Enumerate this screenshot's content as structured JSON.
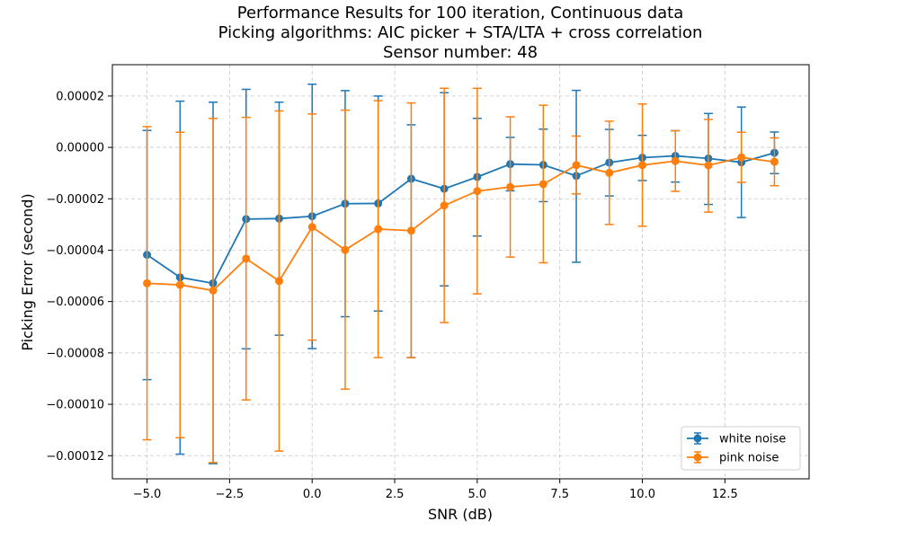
{
  "chart_data": {
    "type": "line",
    "title_lines": [
      "Performance Results for 100 iteration, Continuous data",
      "Picking algorithms: AIC picker + STA/LTA + cross correlation",
      "Sensor number: 48"
    ],
    "xlabel": "SNR (dB)",
    "ylabel": "Picking Error (second)",
    "xlim": [
      -6.05,
      15.05
    ],
    "ylim": [
      -0.000129,
      3.22e-05
    ],
    "xticks": [
      -5.0,
      -2.5,
      0.0,
      2.5,
      5.0,
      7.5,
      10.0,
      12.5
    ],
    "xtick_labels": [
      "−5.0",
      "−2.5",
      "0.0",
      "2.5",
      "5.0",
      "7.5",
      "10.0",
      "12.5"
    ],
    "yticks": [
      2e-05,
      0,
      -2e-05,
      -4e-05,
      -6e-05,
      -8e-05,
      -0.0001,
      -0.00012
    ],
    "ytick_labels": [
      "0.00002",
      "0.00000",
      "−0.00002",
      "−0.00004",
      "−0.00006",
      "−0.00008",
      "−0.00010",
      "−0.00012"
    ],
    "grid": true,
    "legend_position": "bottom-right",
    "x": [
      -5,
      -4,
      -3,
      -2,
      -1,
      0,
      1,
      2,
      3,
      4,
      5,
      6,
      7,
      8,
      9,
      10,
      11,
      12,
      13,
      14
    ],
    "series": [
      {
        "name": "white noise",
        "color": "#1f77b4",
        "values": [
          -4.18e-05,
          -5.06e-05,
          -5.29e-05,
          -2.79e-05,
          -2.77e-05,
          -2.68e-05,
          -2.19e-05,
          -2.18e-05,
          -1.22e-05,
          -1.61e-05,
          -1.15e-05,
          -6.5e-06,
          -6.8e-06,
          -1.11e-05,
          -5.9e-06,
          -4e-06,
          -3.3e-06,
          -4.3e-06,
          -5.8e-06,
          -2.1e-06
        ],
        "err_upper": [
          6.6e-06,
          1.8e-05,
          1.76e-05,
          2.26e-05,
          1.76e-05,
          2.46e-05,
          2.21e-05,
          2e-05,
          8.8e-06,
          2.13e-05,
          1.13e-05,
          3.9e-06,
          7.1e-06,
          2.22e-05,
          7e-06,
          4.7e-06,
          6.5e-06,
          1.32e-05,
          1.57e-05,
          6e-06
        ],
        "err_lower": [
          -9.04e-05,
          -0.0001194,
          -0.0001231,
          -7.84e-05,
          -7.31e-05,
          -7.83e-05,
          -6.59e-05,
          -6.37e-05,
          -8.18e-05,
          -5.39e-05,
          -3.45e-05,
          -1.69e-05,
          -2.11e-05,
          -4.47e-05,
          -1.89e-05,
          -1.29e-05,
          -1.35e-05,
          -2.22e-05,
          -2.73e-05,
          -1.02e-05
        ]
      },
      {
        "name": "pink noise",
        "color": "#ff7f0e",
        "values": [
          -5.29e-05,
          -5.35e-05,
          -5.57e-05,
          -4.33e-05,
          -5.2e-05,
          -3.1e-05,
          -3.99e-05,
          -3.18e-05,
          -3.24e-05,
          -2.26e-05,
          -1.7e-05,
          -1.54e-05,
          -1.43e-05,
          -6.9e-06,
          -9.9e-06,
          -6.9e-06,
          -5.3e-06,
          -7e-06,
          -3.9e-06,
          -5.6e-06
        ],
        "err_upper": [
          8.1e-06,
          5.9e-06,
          1.13e-05,
          1.17e-05,
          1.42e-05,
          1.3e-05,
          1.45e-05,
          1.82e-05,
          1.73e-05,
          2.3e-05,
          2.3e-05,
          1.19e-05,
          1.64e-05,
          4.4e-06,
          1.02e-05,
          1.69e-05,
          6.5e-06,
          1.09e-05,
          5.9e-06,
          3.7e-06
        ],
        "err_lower": [
          -0.0001138,
          -0.000113,
          -0.0001227,
          -9.83e-05,
          -0.0001182,
          -7.5e-05,
          -9.41e-05,
          -8.18e-05,
          -8.18e-05,
          -6.82e-05,
          -5.7e-05,
          -4.27e-05,
          -4.49e-05,
          -1.81e-05,
          -3e-05,
          -3.07e-05,
          -1.71e-05,
          -2.52e-05,
          -1.36e-05,
          -1.49e-05
        ]
      }
    ]
  }
}
